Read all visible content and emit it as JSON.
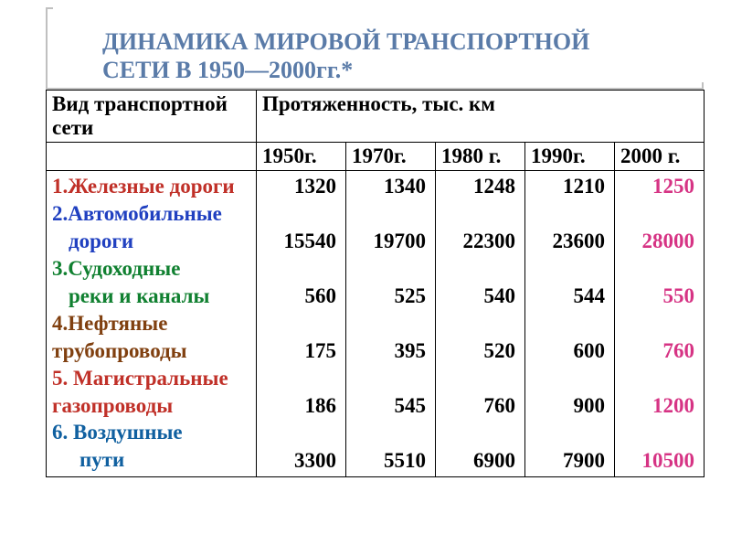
{
  "title_line1": "ДИНАМИКА МИРОВОЙ ТРАНСПОРТНОЙ",
  "title_line2": "СЕТИ В 1950—2000гг.*",
  "header_left": "Вид транспортной сети",
  "header_span": "Протяженность, тыс. км",
  "years": [
    "1950г.",
    "1970г.",
    "1980 г.",
    "1990г.",
    "2000 г."
  ],
  "rows": [
    {
      "label": "1.Железные дороги",
      "color": "#c03028",
      "indent": 0
    },
    {
      "label_l1": "2.Автомобильные",
      "label_l2": "дороги",
      "color": "#2040c0",
      "indent": 18
    },
    {
      "label_l1": "3.Судоходные",
      "label_l2": "реки и каналы",
      "color": "#108030",
      "indent": 18
    },
    {
      "label_l1": "4.Нефтяные",
      "label_l2": "трубопроводы",
      "color": "#804010",
      "indent": 0
    },
    {
      "label_l1": "5. Магистральные",
      "label_l2": "газопроводы",
      "color": "#c03028",
      "indent": 0
    },
    {
      "label_l1": "6. Воздушные",
      "label_l2": "пути",
      "color": "#1060a0",
      "indent": 30
    }
  ],
  "data": {
    "y1950": [
      "1320",
      "15540",
      "560",
      "175",
      "186",
      "3300"
    ],
    "y1970": [
      "1340",
      "19700",
      "525",
      "395",
      "545",
      "5510"
    ],
    "y1980": [
      "1248",
      "22300",
      "540",
      "520",
      "760",
      "6900"
    ],
    "y1990": [
      "1210",
      "23600",
      "544",
      "600",
      "900",
      "7900"
    ],
    "y2000": [
      "1250",
      "28000",
      "550",
      "760",
      "1200",
      "10500"
    ]
  },
  "accent_col": "y2000",
  "colors": {
    "title": "#5a7ba8",
    "border": "#000000",
    "accent": "#d63384"
  },
  "fontsize": {
    "title": 26,
    "cell": 23
  }
}
